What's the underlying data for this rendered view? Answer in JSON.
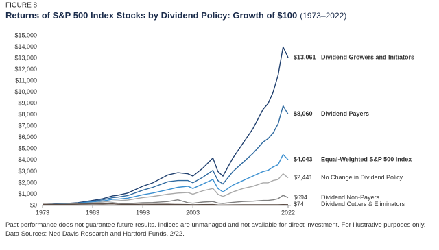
{
  "chart_data": {
    "type": "line",
    "figure_label": "FIGURE 8",
    "title": "Returns of S&P 500 Index Stocks by Dividend Policy: Growth of $100",
    "subtitle": "(1973–2022)",
    "footnote": "Past performance does not guarantee future results. Indices are unmanaged and not available for direct investment. For illustrative purposes only. Data Sources: Ned Davis Research and Hartford Funds, 2/22.",
    "x": [
      1973,
      1975,
      1978,
      1980,
      1983,
      1985,
      1987,
      1988,
      1990,
      1993,
      1995,
      1998,
      2000,
      2002,
      2003,
      2005,
      2007,
      2008,
      2009,
      2011,
      2013,
      2015,
      2017,
      2018,
      2019,
      2020,
      2021,
      2022
    ],
    "xlim": [
      1973,
      2022
    ],
    "xticks": [
      1973,
      1983,
      1993,
      2003,
      2022
    ],
    "ylim": [
      0,
      15000
    ],
    "yticks": [
      {
        "value": 0,
        "label": "$0"
      },
      {
        "value": 1000,
        "label": "$1,000"
      },
      {
        "value": 2000,
        "label": "$2,000"
      },
      {
        "value": 3000,
        "label": "$3,000"
      },
      {
        "value": 4000,
        "label": "$4,000"
      },
      {
        "value": 5000,
        "label": "$5,000"
      },
      {
        "value": 6000,
        "label": "$6,000"
      },
      {
        "value": 7000,
        "label": "$7,000"
      },
      {
        "value": 8000,
        "label": "$8,000"
      },
      {
        "value": 9000,
        "label": "$9,000"
      },
      {
        "value": 10000,
        "label": "$10,000"
      },
      {
        "value": 11000,
        "label": "$11,000"
      },
      {
        "value": 12000,
        "label": "$12,000"
      },
      {
        "value": 13000,
        "label": "$13,000"
      },
      {
        "value": 14000,
        "label": "$14,000"
      },
      {
        "value": 15000,
        "label": "$15,000"
      }
    ],
    "grid": false,
    "series": [
      {
        "name": "Dividend Growers and Initiators",
        "color": "#1f3f6e",
        "end_label": "$13,061",
        "values": [
          100,
          120,
          180,
          250,
          450,
          600,
          850,
          900,
          1100,
          1700,
          2000,
          2700,
          2900,
          2800,
          2600,
          3300,
          4200,
          3000,
          2600,
          4200,
          5500,
          6800,
          8500,
          9000,
          10000,
          11500,
          14000,
          13061
        ]
      },
      {
        "name": "Dividend Payers",
        "color": "#2f6aa0",
        "end_label": "$8,060",
        "values": [
          100,
          115,
          160,
          220,
          380,
          500,
          700,
          740,
          880,
          1350,
          1600,
          2100,
          2200,
          2200,
          2000,
          2500,
          3100,
          2200,
          1900,
          3000,
          3800,
          4600,
          5600,
          5900,
          6400,
          7200,
          8800,
          8060
        ]
      },
      {
        "name": "Equal-Weighted S&P 500 Index",
        "color": "#3a8fd0",
        "end_label": "$4,043",
        "values": [
          100,
          110,
          140,
          190,
          320,
          400,
          550,
          560,
          650,
          950,
          1100,
          1400,
          1600,
          1700,
          1500,
          1900,
          2300,
          1500,
          1200,
          1800,
          2200,
          2600,
          3000,
          3100,
          3400,
          3600,
          4500,
          4043
        ]
      },
      {
        "name": "No Change in Dividend Policy",
        "color": "#a9a9a9",
        "end_label": "$2,441",
        "values": [
          100,
          105,
          120,
          150,
          250,
          300,
          400,
          420,
          480,
          700,
          800,
          1000,
          1100,
          1150,
          1000,
          1300,
          1500,
          1000,
          800,
          1200,
          1500,
          1700,
          2000,
          2000,
          2200,
          2300,
          2800,
          2441
        ]
      },
      {
        "name": "Dividend Non-Payers",
        "color": "#7f7f7f",
        "end_label": "$694",
        "values": [
          100,
          95,
          110,
          130,
          200,
          180,
          250,
          200,
          170,
          250,
          260,
          350,
          500,
          250,
          200,
          300,
          350,
          220,
          180,
          280,
          350,
          380,
          450,
          450,
          500,
          600,
          900,
          694
        ]
      },
      {
        "name": "Dividend Cutters & Eliminators",
        "color": "#5a4a42",
        "end_label": "$74",
        "values": [
          100,
          90,
          95,
          110,
          130,
          120,
          140,
          110,
          90,
          110,
          100,
          110,
          90,
          80,
          60,
          80,
          85,
          50,
          40,
          55,
          60,
          60,
          65,
          62,
          65,
          60,
          80,
          74
        ]
      }
    ]
  }
}
